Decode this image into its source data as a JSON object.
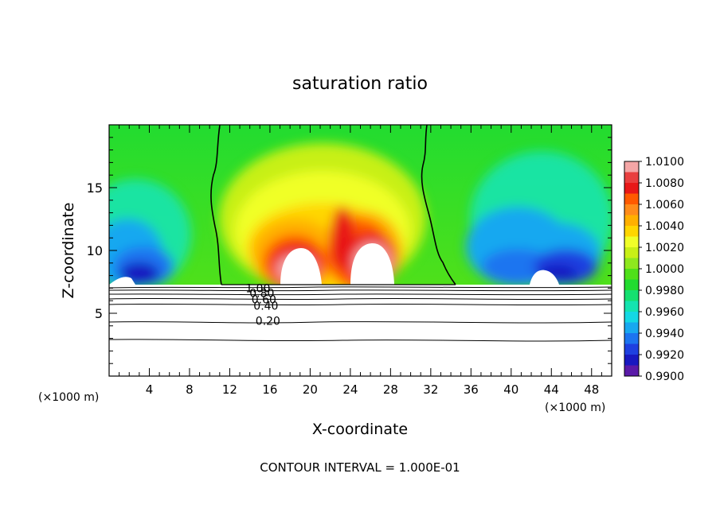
{
  "chart_data": {
    "type": "heatmap",
    "title": "saturation ratio",
    "xlabel": "X-coordinate",
    "ylabel": "Z-coordinate",
    "x_unit": "(×1000 m)",
    "z_unit": "(×1000 m)",
    "footer": "CONTOUR INTERVAL = 1.000E-01",
    "xlim": [
      0,
      50
    ],
    "ylim": [
      0,
      20
    ],
    "x_ticks": [
      4,
      8,
      12,
      16,
      20,
      24,
      28,
      32,
      36,
      40,
      44,
      48
    ],
    "y_ticks": [
      5,
      10,
      15
    ],
    "colorbar": {
      "labels": [
        "1.0100",
        "1.0080",
        "1.0060",
        "1.0040",
        "1.0020",
        "1.0000",
        "0.9980",
        "0.9960",
        "0.9940",
        "0.9920",
        "0.9900"
      ],
      "colors": [
        "#f4a6a6",
        "#e93f3f",
        "#e81818",
        "#ff5a00",
        "#ff8c1a",
        "#ffb000",
        "#ffd600",
        "#f0ff28",
        "#c8f016",
        "#8ee81e",
        "#4fe01a",
        "#22dc30",
        "#14e070",
        "#14e4b0",
        "#14d8e4",
        "#18a8f0",
        "#1c74f0",
        "#1e40e0",
        "#1818c0",
        "#5a1aa8"
      ]
    },
    "contour_labels": [
      {
        "label": "1.00",
        "x": 14.8,
        "z": 7.0
      },
      {
        "label": "0.80",
        "x": 15.2,
        "z": 6.6
      },
      {
        "label": "0.60",
        "x": 15.4,
        "z": 6.1
      },
      {
        "label": "0.40",
        "x": 15.6,
        "z": 5.6
      },
      {
        "label": "0.20",
        "x": 15.8,
        "z": 4.4
      }
    ]
  }
}
